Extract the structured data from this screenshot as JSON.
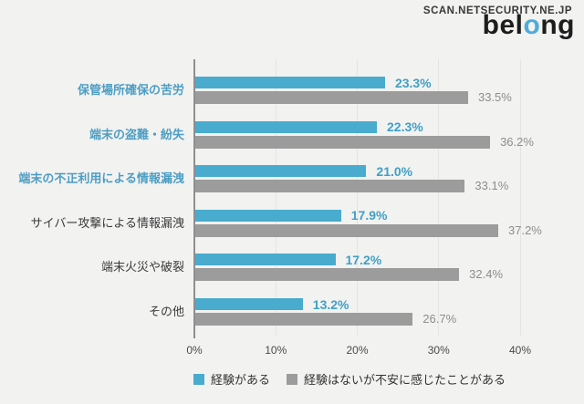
{
  "page": {
    "background": "#f2f2f1"
  },
  "header": {
    "site_text": "SCAN.NETSECURITY.NE.JP",
    "logo_prefix": "bel",
    "logo_accent": "o",
    "logo_suffix": "ng",
    "logo_accent_color": "#4fabd7"
  },
  "chart_data": {
    "type": "bar",
    "orientation": "horizontal",
    "title": "",
    "categories": [
      "保管場所確保の苦労",
      "端末の盗難・紛失",
      "端末の不正利用による情報漏洩",
      "サイバー攻撃による情報漏洩",
      "端末火災や破裂",
      "その他"
    ],
    "category_emphasis": [
      true,
      true,
      true,
      false,
      false,
      false
    ],
    "series": [
      {
        "name": "経験がある",
        "color": "#49abce",
        "label_color": "#3fa0c6",
        "values": [
          23.3,
          22.3,
          21.0,
          17.9,
          17.2,
          13.2
        ]
      },
      {
        "name": "経験はないが不安に感じたことがある",
        "color": "#9c9c9c",
        "label_color": "#8d8d8d",
        "values": [
          33.5,
          36.2,
          33.1,
          37.2,
          32.4,
          26.7
        ]
      }
    ],
    "value_suffix": "%",
    "value_decimals": 1,
    "xlim": [
      0,
      40
    ],
    "x_tick_values": [
      0,
      10,
      20,
      30,
      40
    ],
    "x_tick_labels": [
      "0%",
      "10%",
      "20%",
      "30%",
      "40%"
    ],
    "grid": true,
    "legend_position": "bottom"
  }
}
